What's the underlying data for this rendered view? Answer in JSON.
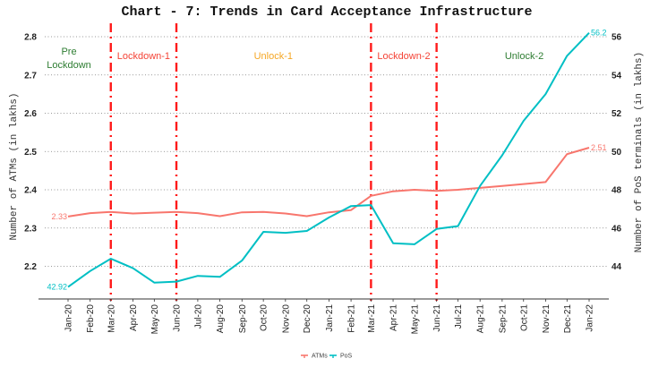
{
  "chart_data": {
    "type": "line",
    "title": "Chart - 7: Trends in Card Acceptance Infrastructure",
    "xlabel": "",
    "ylabel": "Number of ATMs (in lakhs)",
    "y2label": "Number of PoS terminals (in lakhs)",
    "ylim": [
      2.15,
      2.83
    ],
    "y2lim": [
      43.0,
      56.6
    ],
    "yticks": [
      "2.2",
      "2.3",
      "2.4",
      "2.5",
      "2.6",
      "2.7",
      "2.8"
    ],
    "y2ticks": [
      "44",
      "46",
      "48",
      "50",
      "52",
      "54",
      "56"
    ],
    "grid": "horizontal-dotted",
    "x": [
      "Jan-20",
      "Feb-20",
      "Mar-20",
      "Apr-20",
      "May-20",
      "Jun-20",
      "Jul-20",
      "Aug-20",
      "Sep-20",
      "Oct-20",
      "Nov-20",
      "Dec-20",
      "Jan-21",
      "Feb-21",
      "Mar-21",
      "Apr-21",
      "May-21",
      "Jun-21",
      "Jul-21",
      "Aug-21",
      "Sep-21",
      "Oct-21",
      "Nov-21",
      "Dec-21",
      "Jan-22"
    ],
    "x_days": [
      0,
      31,
      60,
      91,
      121,
      152,
      182,
      213,
      244,
      274,
      305,
      335,
      366,
      397,
      425,
      456,
      486,
      517,
      547,
      578,
      609,
      639,
      670,
      700,
      731
    ],
    "series": [
      {
        "name": "ATMs",
        "axis": "left",
        "color": "#f8766d",
        "values": [
          2.33,
          2.339,
          2.342,
          2.338,
          2.34,
          2.342,
          2.339,
          2.331,
          2.341,
          2.342,
          2.338,
          2.331,
          2.341,
          2.347,
          2.384,
          2.396,
          2.4,
          2.397,
          2.4,
          2.405,
          2.41,
          2.415,
          2.42,
          2.493,
          2.51
        ],
        "start_label": "2.33",
        "end_label": "2.51"
      },
      {
        "name": "PoS",
        "axis": "right",
        "color": "#00bfc4",
        "values": [
          42.92,
          43.75,
          44.4,
          43.9,
          43.15,
          43.2,
          43.5,
          43.45,
          44.3,
          45.8,
          45.75,
          45.85,
          46.55,
          47.15,
          47.2,
          45.2,
          45.15,
          45.95,
          46.1,
          48.2,
          49.8,
          51.6,
          53.0,
          55.0,
          56.2
        ],
        "start_label": "42.92",
        "end_label": "56.2"
      }
    ],
    "vlines": [
      {
        "at": "Mar-20",
        "day": 60
      },
      {
        "at": "Jun-20",
        "day": 152
      },
      {
        "at": "Mar-21",
        "day": 425
      },
      {
        "at": "Jun-21",
        "day": 517
      }
    ],
    "annotations": [
      {
        "text": "Pre",
        "line2": "Lockdown",
        "color": "#2e7d32",
        "region": "before Mar-20"
      },
      {
        "text": "Lockdown-1",
        "color": "#f44336",
        "region": "Mar-20 to Jun-20"
      },
      {
        "text": "Unlock-1",
        "color": "#f5a623",
        "region": "Jun-20 to Mar-21"
      },
      {
        "text": "Lockdown-2",
        "color": "#f44336",
        "region": "Mar-21 to Jun-21"
      },
      {
        "text": "Unlock-2",
        "color": "#2e7d32",
        "region": "after Jun-21"
      }
    ],
    "legend": {
      "position": "bottom",
      "entries": [
        "ATMs",
        "PoS"
      ]
    }
  }
}
